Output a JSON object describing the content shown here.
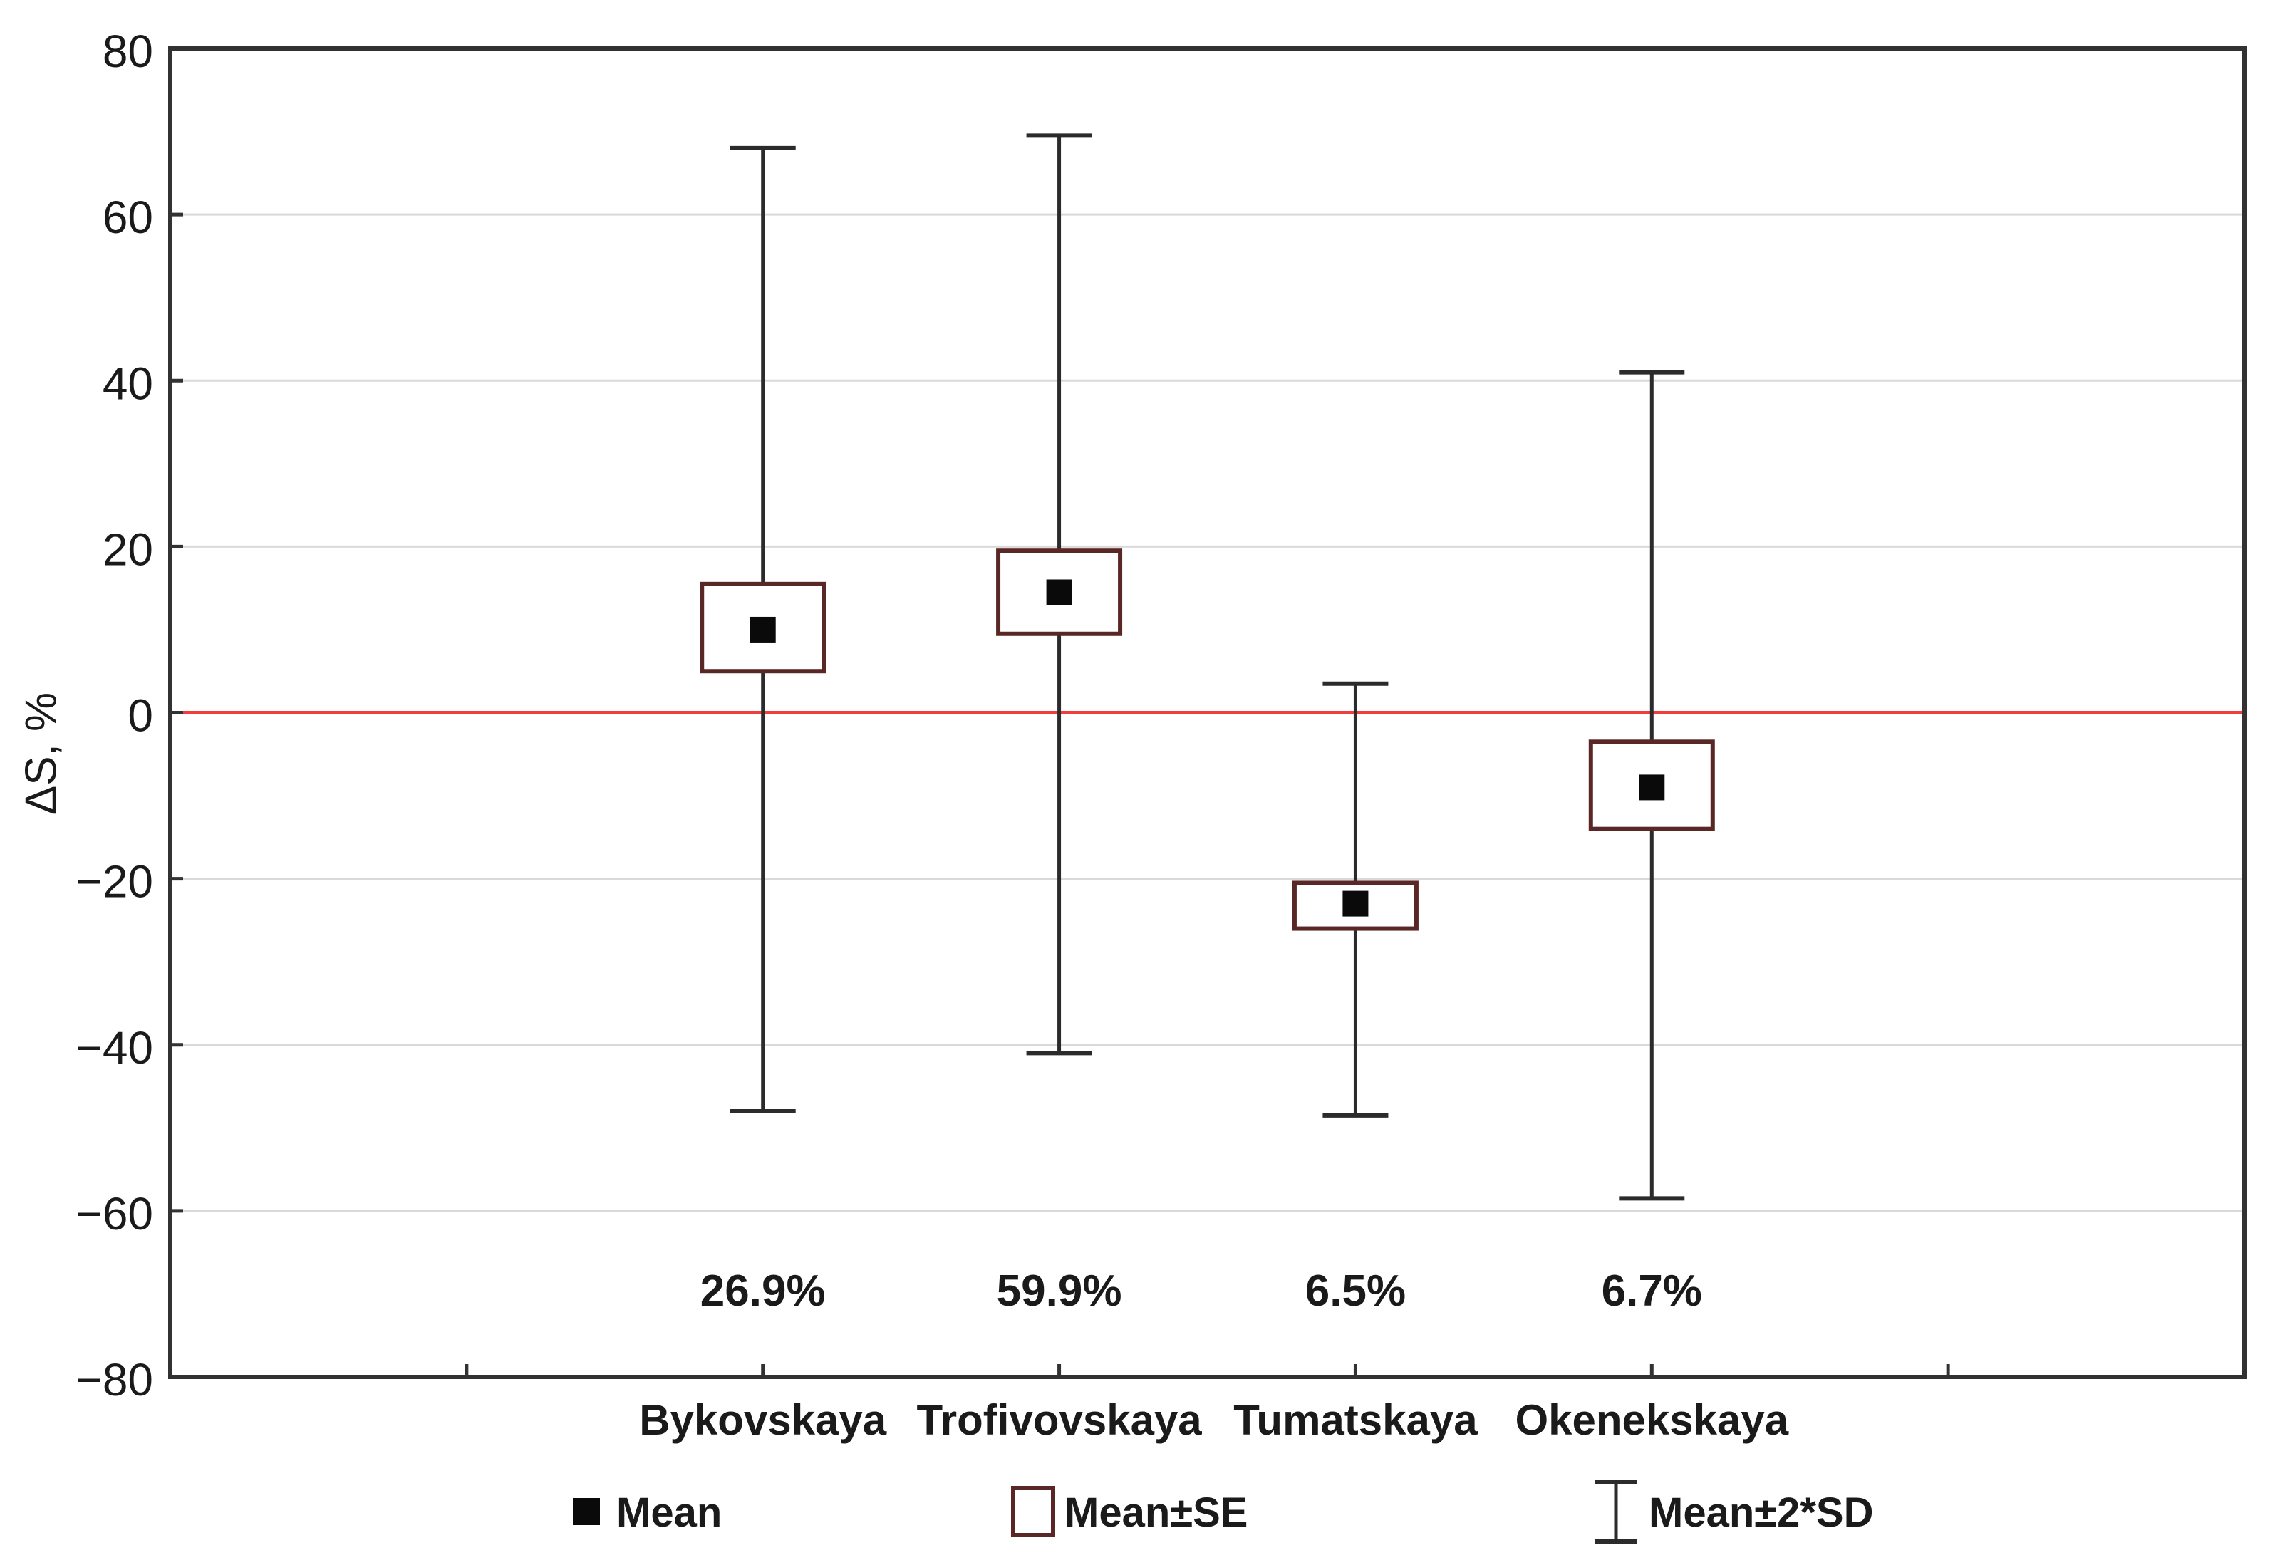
{
  "figure": {
    "background": "#ffffff"
  },
  "chart_data": {
    "type": "box-whisker-error-plot",
    "title": "",
    "xlabel": "",
    "ylabel": "ΔS, %",
    "ylim": [
      -80,
      80
    ],
    "ytick_step": 20,
    "grid": "horizontal",
    "legend_position": "bottom",
    "categories": [
      "Bykovskaya",
      "Trofivovskaya",
      "Tumatskaya",
      "Okenekskaya"
    ],
    "series": [
      {
        "name": "Bykovskaya",
        "mean": 10,
        "se_low": 5,
        "se_high": 15.5,
        "sd2_low": -48,
        "sd2_high": 68,
        "share_pct": 26.9,
        "share_label": "26.9%"
      },
      {
        "name": "Trofivovskaya",
        "mean": 14.5,
        "se_low": 9.5,
        "se_high": 19.5,
        "sd2_low": -41,
        "sd2_high": 69.5,
        "share_pct": 59.9,
        "share_label": "59.9%"
      },
      {
        "name": "Tumatskaya",
        "mean": -23,
        "se_low": -26,
        "se_high": -20.5,
        "sd2_low": -48.5,
        "sd2_high": 3.5,
        "share_pct": 6.5,
        "share_label": "6.5%"
      },
      {
        "name": "Okenekskaya",
        "mean": -9,
        "se_low": -14,
        "se_high": -3.5,
        "sd2_low": -58.5,
        "sd2_high": 41,
        "share_pct": 6.7,
        "share_label": "6.7%"
      }
    ],
    "reference_line": {
      "value": 0,
      "color": "#f23d3d"
    },
    "legend": [
      {
        "marker": "filled-square",
        "label": "Mean"
      },
      {
        "marker": "open-box",
        "label": "Mean±SE"
      },
      {
        "marker": "whisker",
        "label": "Mean±2*SD"
      }
    ]
  },
  "style": {
    "axis_color": "#323232",
    "grid_color": "#dadada",
    "whisker_color": "#2b2b2b",
    "box_color": "#5a2727",
    "box_fill": "#ffffff",
    "mean_color": "#0a0a0a",
    "text_color": "#1a1a1a",
    "reference_color": "#f23d3d"
  }
}
